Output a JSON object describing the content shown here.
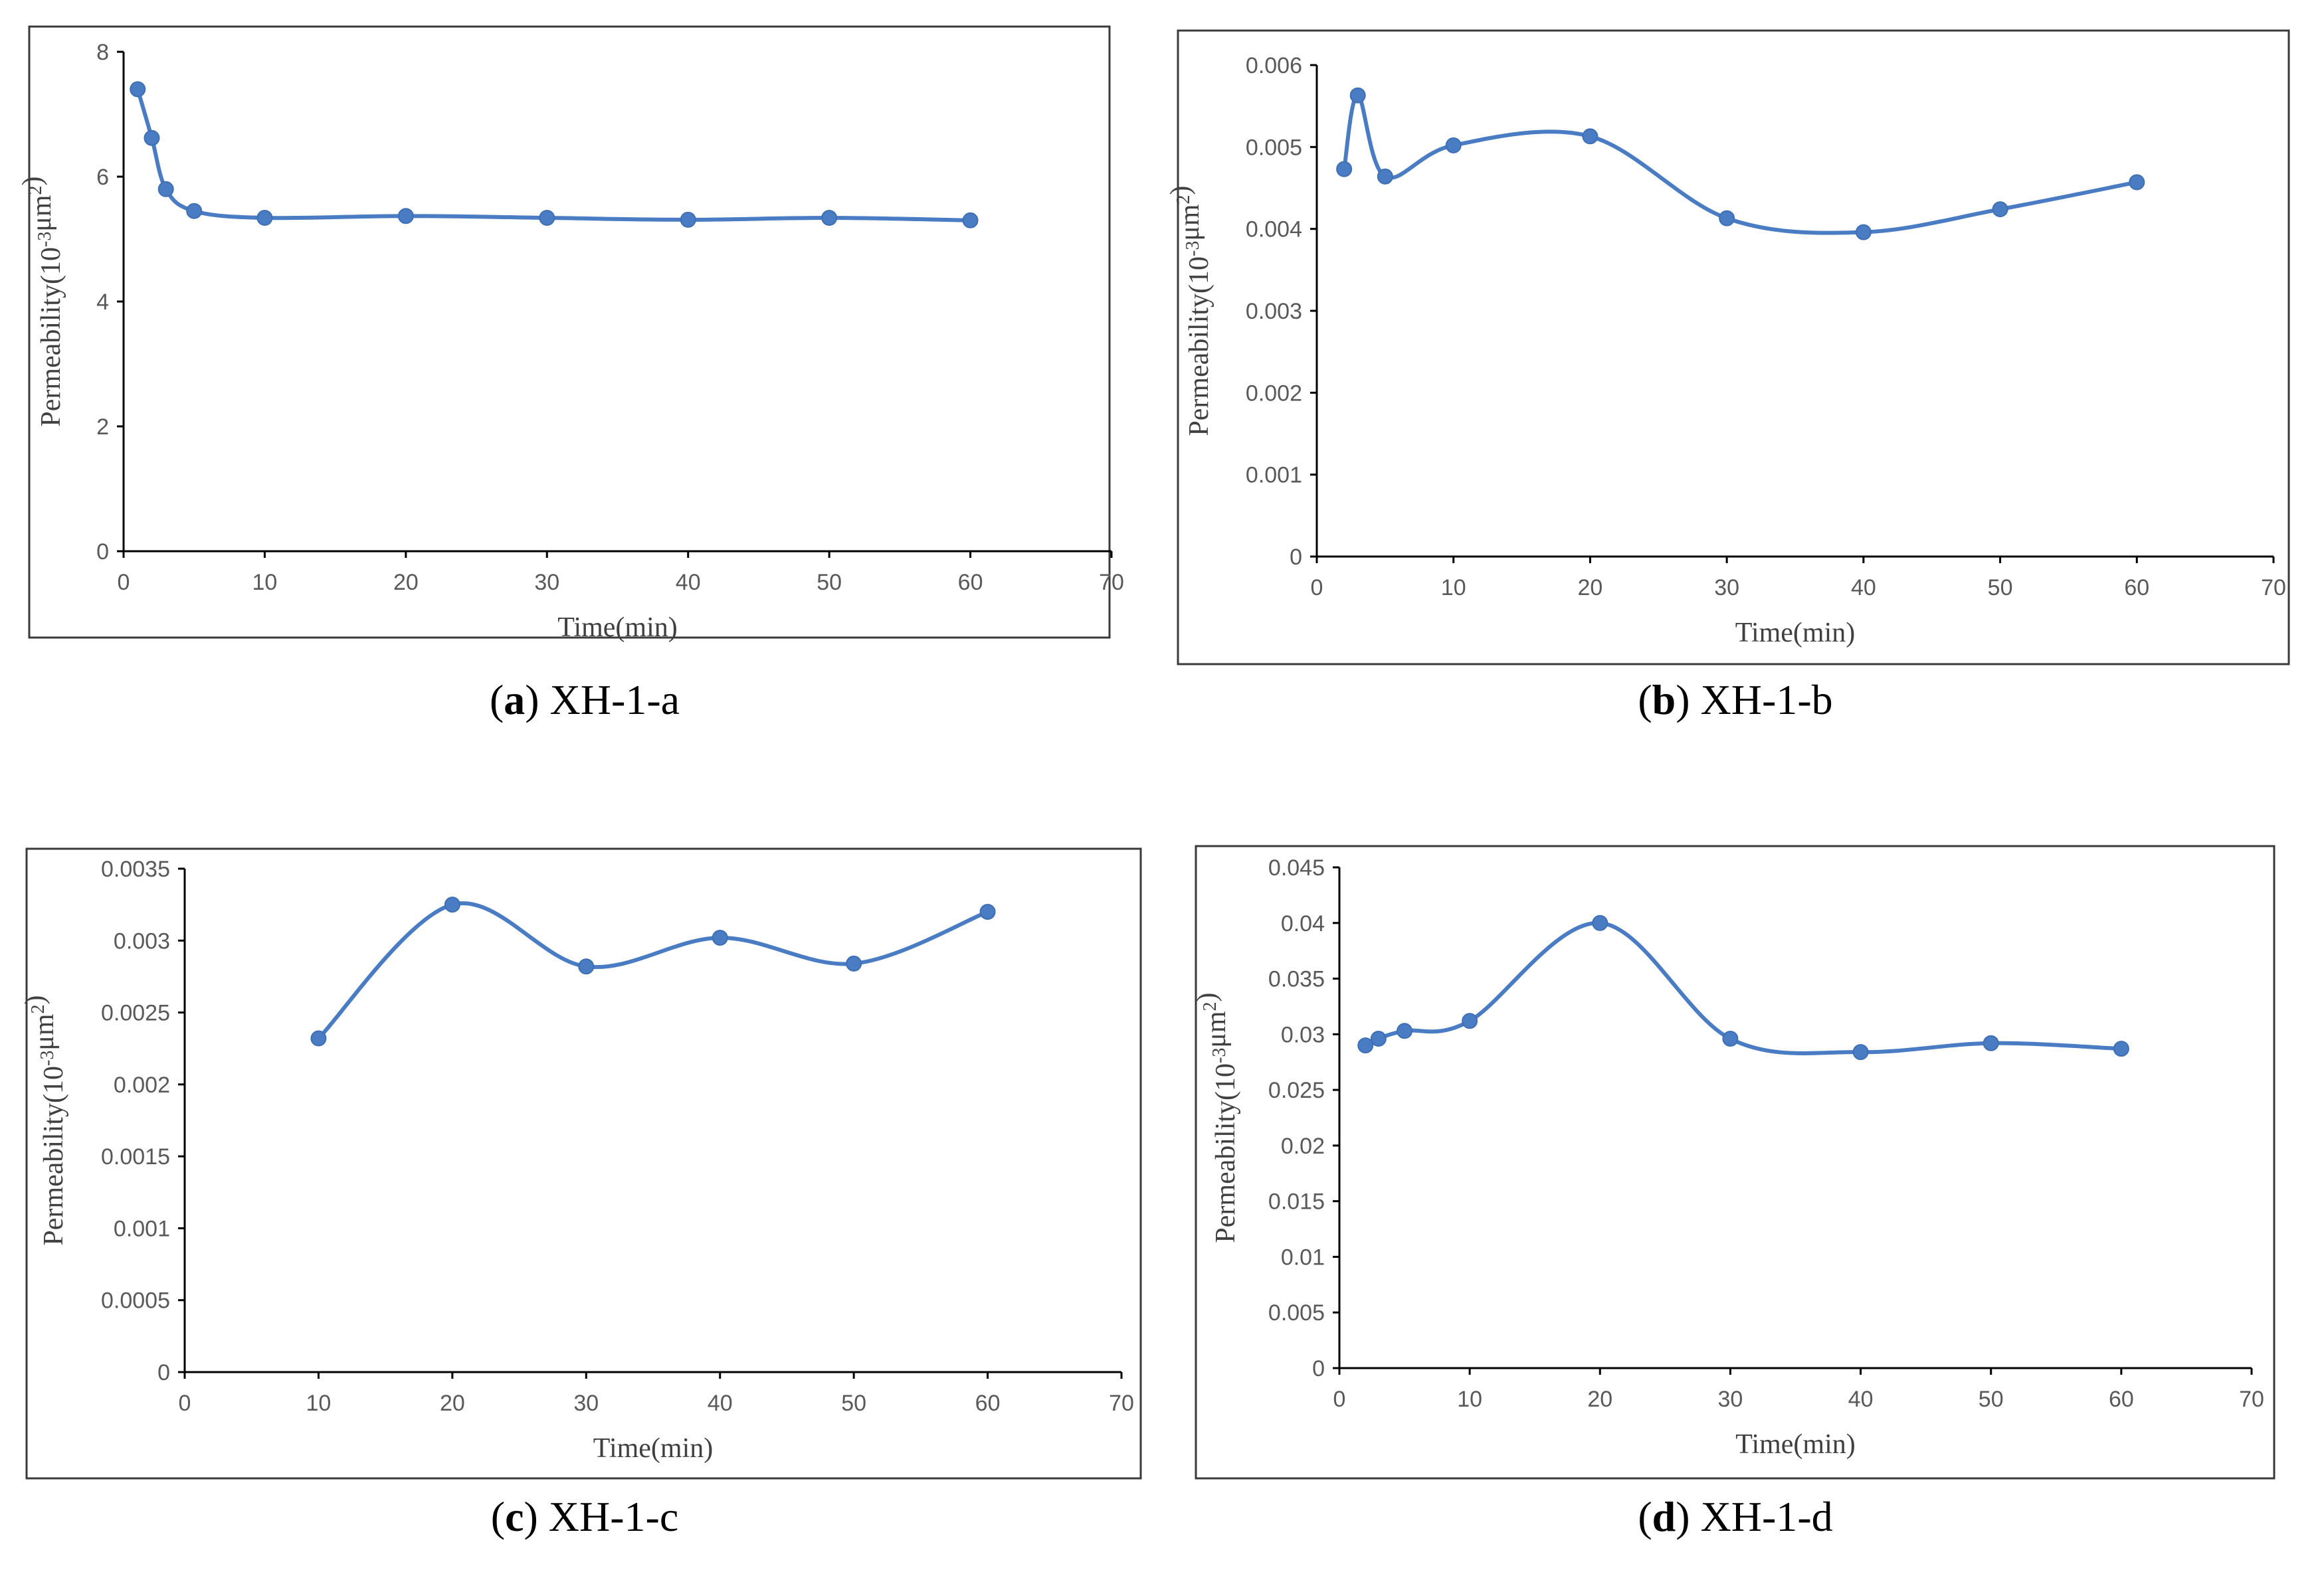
{
  "colors": {
    "series": "#4a7cc4",
    "frame": "#3a3a3a",
    "axis": "#000000",
    "tick_label": "#595959"
  },
  "chart_data": [
    {
      "type": "line",
      "title": "",
      "caption": {
        "letter": "a",
        "text": " XH-1-a"
      },
      "xlabel": "Time(min)",
      "ylabel": "Permeability(10-3μm2)",
      "xlim": [
        0,
        70
      ],
      "ylim": [
        0,
        8
      ],
      "xticks": [
        0,
        10,
        20,
        30,
        40,
        50,
        60,
        70
      ],
      "xtick_labels": [
        "0",
        "10",
        "20",
        "30",
        "40",
        "50",
        "60",
        "70"
      ],
      "yticks": [
        0,
        2,
        4,
        6,
        8
      ],
      "ytick_labels": [
        "0",
        "2",
        "4",
        "6",
        "8"
      ],
      "grid": false,
      "series": [
        {
          "name": "XH-1-a",
          "x": [
            1,
            2,
            3,
            5,
            10,
            20,
            30,
            40,
            50,
            60
          ],
          "y": [
            7.4,
            6.62,
            5.8,
            5.45,
            5.34,
            5.37,
            5.34,
            5.31,
            5.34,
            5.3
          ]
        }
      ]
    },
    {
      "type": "line",
      "title": "",
      "caption": {
        "letter": "b",
        "text": " XH-1-b"
      },
      "xlabel": "Time(min)",
      "ylabel": "Permeability(10-3μm2)",
      "xlim": [
        0,
        70
      ],
      "ylim": [
        0,
        0.006
      ],
      "xticks": [
        0,
        10,
        20,
        30,
        40,
        50,
        60,
        70
      ],
      "xtick_labels": [
        "0",
        "10",
        "20",
        "30",
        "40",
        "50",
        "60",
        "70"
      ],
      "yticks": [
        0,
        0.001,
        0.002,
        0.003,
        0.004,
        0.005,
        0.006
      ],
      "ytick_labels": [
        "0",
        "0.001",
        "0.002",
        "0.003",
        "0.004",
        "0.005",
        "0.006"
      ],
      "grid": false,
      "series": [
        {
          "name": "XH-1-b",
          "x": [
            2,
            3,
            5,
            10,
            20,
            30,
            40,
            50,
            60
          ],
          "y": [
            0.00473,
            0.00563,
            0.00464,
            0.00502,
            0.00513,
            0.00413,
            0.00396,
            0.00424,
            0.00457
          ]
        }
      ]
    },
    {
      "type": "line",
      "title": "",
      "caption": {
        "letter": "c",
        "text": " XH-1-c"
      },
      "xlabel": "Time(min)",
      "ylabel": "Permeability(10-3μm2)",
      "xlim": [
        0,
        70
      ],
      "ylim": [
        0,
        0.0035
      ],
      "xticks": [
        0,
        10,
        20,
        30,
        40,
        50,
        60,
        70
      ],
      "xtick_labels": [
        "0",
        "10",
        "20",
        "30",
        "40",
        "50",
        "60",
        "70"
      ],
      "yticks": [
        0,
        0.0005,
        0.001,
        0.0015,
        0.002,
        0.0025,
        0.003,
        0.0035
      ],
      "ytick_labels": [
        "0",
        "0.0005",
        "0.001",
        "0.0015",
        "0.002",
        "0.0025",
        "0.003",
        "0.0035"
      ],
      "grid": false,
      "series": [
        {
          "name": "XH-1-c",
          "x": [
            10,
            20,
            30,
            40,
            50,
            60
          ],
          "y": [
            0.00232,
            0.00325,
            0.00282,
            0.00302,
            0.00284,
            0.0032
          ]
        }
      ]
    },
    {
      "type": "line",
      "title": "",
      "caption": {
        "letter": "d",
        "text": " XH-1-d"
      },
      "xlabel": "Time(min)",
      "ylabel": "Permeability(10-3μm2)",
      "xlim": [
        0,
        70
      ],
      "ylim": [
        0,
        0.045
      ],
      "xticks": [
        0,
        10,
        20,
        30,
        40,
        50,
        60,
        70
      ],
      "xtick_labels": [
        "0",
        "10",
        "20",
        "30",
        "40",
        "50",
        "60",
        "70"
      ],
      "yticks": [
        0,
        0.005,
        0.01,
        0.015,
        0.02,
        0.025,
        0.03,
        0.035,
        0.04,
        0.045
      ],
      "ytick_labels": [
        "0",
        "0.005",
        "0.01",
        "0.015",
        "0.02",
        "0.025",
        "0.03",
        "0.035",
        "0.04",
        "0.045"
      ],
      "grid": false,
      "series": [
        {
          "name": "XH-1-d",
          "x": [
            2,
            3,
            5,
            10,
            20,
            30,
            40,
            50,
            60
          ],
          "y": [
            0.029,
            0.0296,
            0.0303,
            0.0312,
            0.04,
            0.0296,
            0.0284,
            0.0292,
            0.0287
          ]
        }
      ]
    }
  ]
}
